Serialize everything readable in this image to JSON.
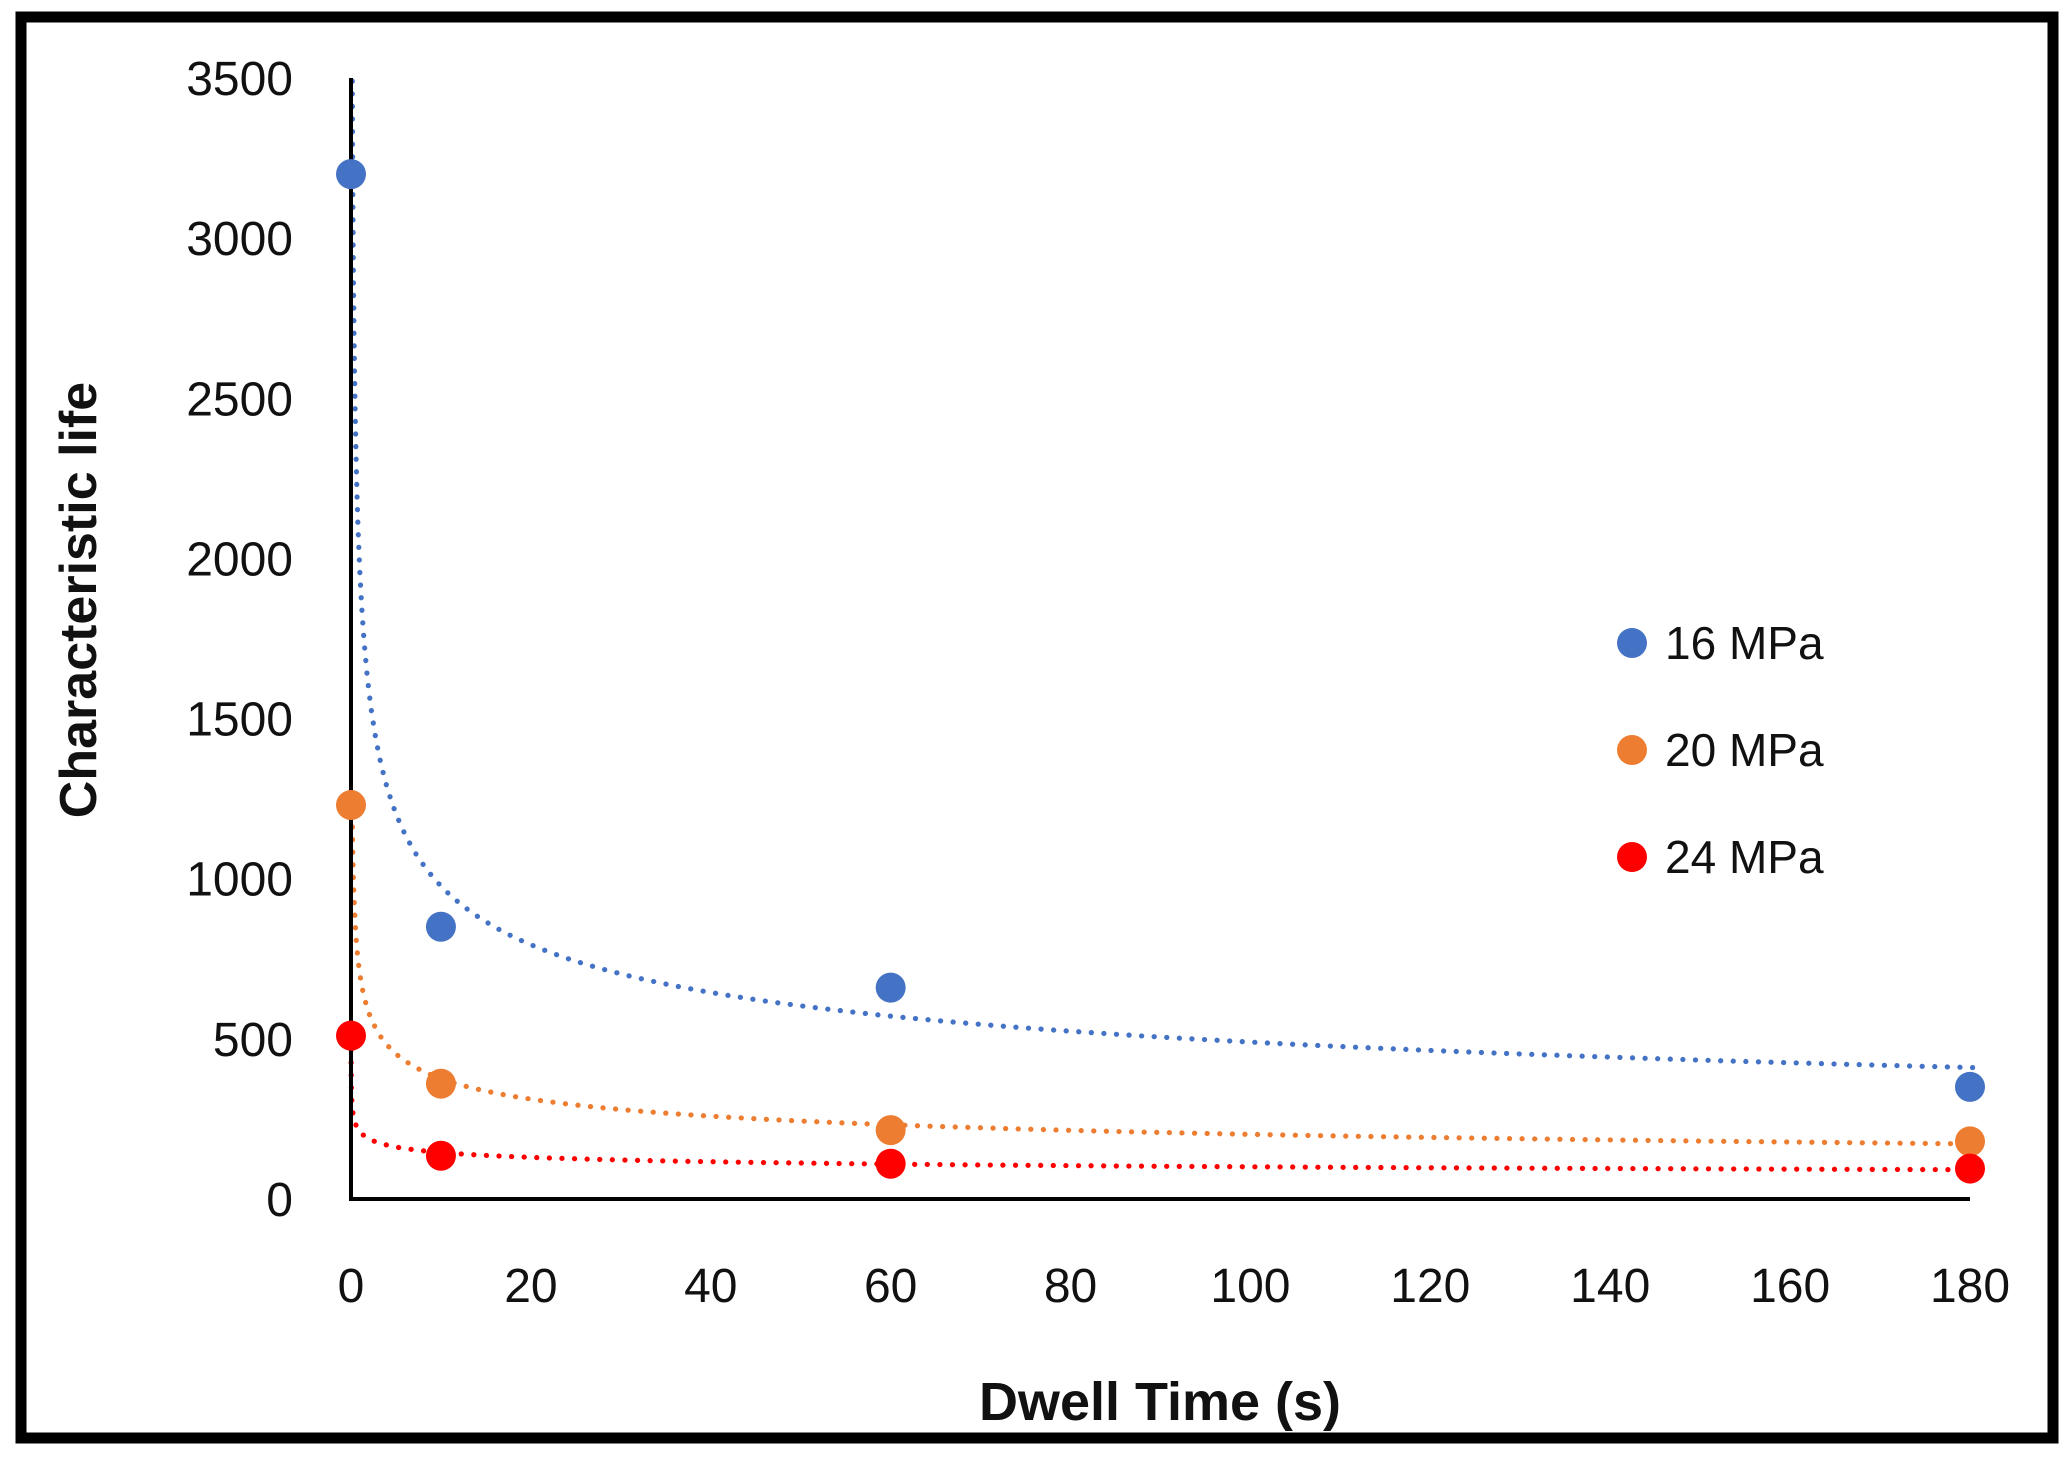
{
  "figure": {
    "background": "#ffffff",
    "border_color": "#000000"
  },
  "chart_data": {
    "type": "scatter",
    "title": "",
    "xlabel": "Dwell Time (s)",
    "ylabel": "Characteristic life",
    "xlim": [
      0,
      181
    ],
    "ylim": [
      0,
      3500
    ],
    "x_ticks": [
      0,
      20,
      40,
      60,
      80,
      100,
      120,
      140,
      160,
      180
    ],
    "y_ticks": [
      0,
      500,
      1000,
      1500,
      2000,
      2500,
      3000,
      3500
    ],
    "grid": false,
    "legend_position": "middle-right",
    "axis_color": "#000000",
    "tick_label_color": "#111111",
    "series": [
      {
        "name": "16 MPa",
        "color": "#4472C4",
        "x": [
          0,
          10,
          60,
          180
        ],
        "y": [
          3200,
          850,
          660,
          350
        ],
        "trendline": {
          "type": "power",
          "a": 1950,
          "b": -0.3,
          "clip_max": 3490,
          "x_end": 180.8,
          "style": "dotted"
        }
      },
      {
        "name": "20 MPa",
        "color": "#ED7D31",
        "x": [
          0,
          10,
          60,
          180
        ],
        "y": [
          1230,
          360,
          215,
          180
        ],
        "trendline": {
          "type": "power",
          "a": 700,
          "b": -0.27,
          "clip_max": 1240,
          "x_end": 180.8,
          "style": "dotted"
        }
      },
      {
        "name": "24 MPa",
        "color": "#FF0000",
        "x": [
          0,
          10,
          60,
          180
        ],
        "y": [
          510,
          135,
          110,
          95
        ],
        "trendline": {
          "type": "power",
          "a": 210,
          "b": -0.16,
          "clip_max": 505,
          "x_end": 180.8,
          "style": "dotted"
        }
      }
    ]
  }
}
